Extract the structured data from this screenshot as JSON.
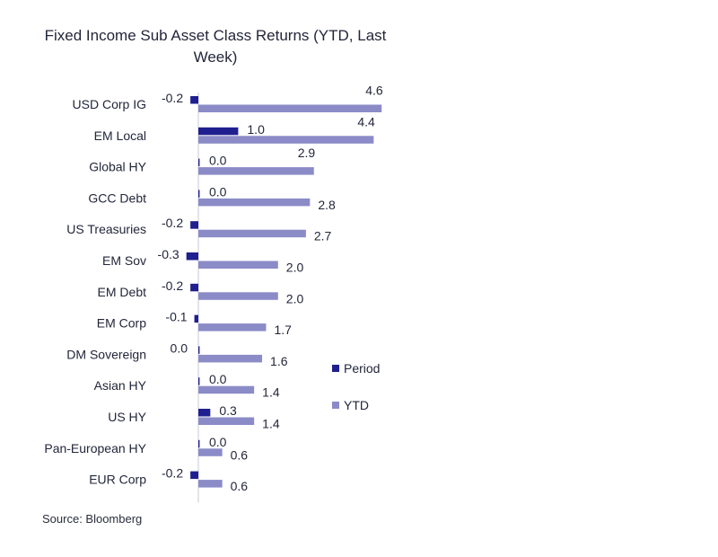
{
  "title": "Fixed Income Sub Asset Class Returns (YTD, Last Week)",
  "source": "Source: Bloomberg",
  "chart_data": {
    "type": "bar",
    "orientation": "horizontal",
    "title": "Fixed Income Sub Asset Class Returns (YTD, Last Week)",
    "categories": [
      "USD Corp IG",
      "EM Local",
      "Global HY",
      "GCC Debt",
      "US Treasuries",
      "EM Sov",
      "EM Debt",
      "EM Corp",
      "DM Sovereign",
      "Asian HY",
      "US HY",
      "Pan-European HY",
      "EUR Corp"
    ],
    "series": [
      {
        "name": "Period",
        "color": "#1f1f8f",
        "values": [
          -0.2,
          1.0,
          0.0,
          0.0,
          -0.2,
          -0.3,
          -0.2,
          -0.1,
          0.0,
          0.0,
          0.3,
          0.0,
          -0.2
        ]
      },
      {
        "name": "YTD",
        "color": "#8b8bc8",
        "values": [
          4.6,
          4.4,
          2.9,
          2.8,
          2.7,
          2.0,
          2.0,
          1.7,
          1.6,
          1.4,
          1.4,
          0.6,
          0.6
        ]
      }
    ],
    "legend": "right",
    "grid": false
  }
}
